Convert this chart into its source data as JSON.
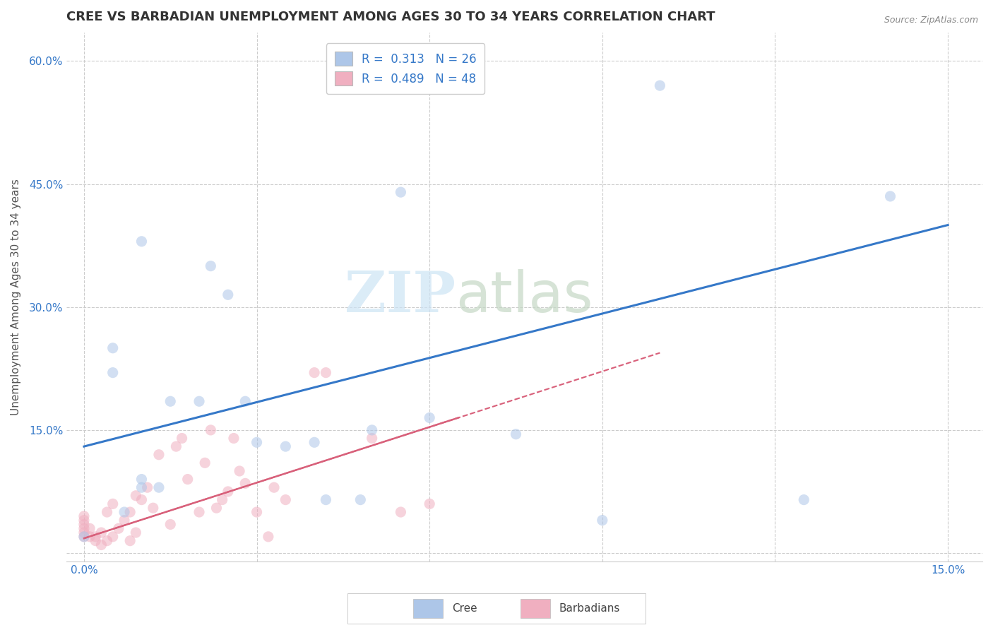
{
  "title": "CREE VS BARBADIAN UNEMPLOYMENT AMONG AGES 30 TO 34 YEARS CORRELATION CHART",
  "source": "Source: ZipAtlas.com",
  "ylabel": "Unemployment Among Ages 30 to 34 years",
  "xlim": [
    -0.003,
    0.156
  ],
  "ylim": [
    -0.01,
    0.635
  ],
  "xticks": [
    0.0,
    0.03,
    0.06,
    0.09,
    0.12,
    0.15
  ],
  "xtick_labels": [
    "0.0%",
    "",
    "",
    "",
    "",
    "15.0%"
  ],
  "yticks": [
    0.0,
    0.15,
    0.3,
    0.45,
    0.6
  ],
  "ytick_labels": [
    "",
    "15.0%",
    "30.0%",
    "45.0%",
    "60.0%"
  ],
  "background_color": "#ffffff",
  "grid_color": "#cccccc",
  "cree_color": "#adc6e8",
  "barbadian_color": "#f0afc0",
  "cree_line_color": "#3578c8",
  "barbadian_line_color": "#d8607a",
  "cree_R": "0.313",
  "cree_N": "26",
  "barbadian_R": "0.489",
  "barbadian_N": "48",
  "cree_line_x0": 0.0,
  "cree_line_y0": 0.13,
  "cree_line_x1": 0.15,
  "cree_line_y1": 0.4,
  "barb_line_x0": 0.0,
  "barb_line_y0": 0.018,
  "barb_line_x1": 0.065,
  "barb_line_y1": 0.165,
  "cree_points_x": [
    0.0,
    0.005,
    0.005,
    0.007,
    0.01,
    0.01,
    0.01,
    0.013,
    0.015,
    0.02,
    0.022,
    0.025,
    0.028,
    0.03,
    0.035,
    0.04,
    0.042,
    0.048,
    0.05,
    0.055,
    0.06,
    0.075,
    0.09,
    0.1,
    0.125,
    0.14
  ],
  "cree_points_y": [
    0.02,
    0.22,
    0.25,
    0.05,
    0.08,
    0.09,
    0.38,
    0.08,
    0.185,
    0.185,
    0.35,
    0.315,
    0.185,
    0.135,
    0.13,
    0.135,
    0.065,
    0.065,
    0.15,
    0.44,
    0.165,
    0.145,
    0.04,
    0.57,
    0.065,
    0.435
  ],
  "barbadian_points_x": [
    0.0,
    0.0,
    0.0,
    0.0,
    0.0,
    0.0,
    0.001,
    0.001,
    0.002,
    0.002,
    0.003,
    0.003,
    0.004,
    0.004,
    0.005,
    0.005,
    0.006,
    0.007,
    0.008,
    0.008,
    0.009,
    0.009,
    0.01,
    0.011,
    0.012,
    0.013,
    0.015,
    0.016,
    0.017,
    0.018,
    0.02,
    0.021,
    0.022,
    0.023,
    0.024,
    0.025,
    0.026,
    0.027,
    0.028,
    0.03,
    0.032,
    0.033,
    0.035,
    0.04,
    0.042,
    0.05,
    0.055,
    0.06
  ],
  "barbadian_points_y": [
    0.02,
    0.025,
    0.03,
    0.035,
    0.04,
    0.045,
    0.02,
    0.03,
    0.015,
    0.02,
    0.01,
    0.025,
    0.015,
    0.05,
    0.02,
    0.06,
    0.03,
    0.04,
    0.015,
    0.05,
    0.025,
    0.07,
    0.065,
    0.08,
    0.055,
    0.12,
    0.035,
    0.13,
    0.14,
    0.09,
    0.05,
    0.11,
    0.15,
    0.055,
    0.065,
    0.075,
    0.14,
    0.1,
    0.085,
    0.05,
    0.02,
    0.08,
    0.065,
    0.22,
    0.22,
    0.14,
    0.05,
    0.06
  ],
  "marker_size": 120,
  "alpha": 0.55,
  "title_fontsize": 13,
  "axis_label_fontsize": 11,
  "tick_fontsize": 11,
  "source_fontsize": 9
}
